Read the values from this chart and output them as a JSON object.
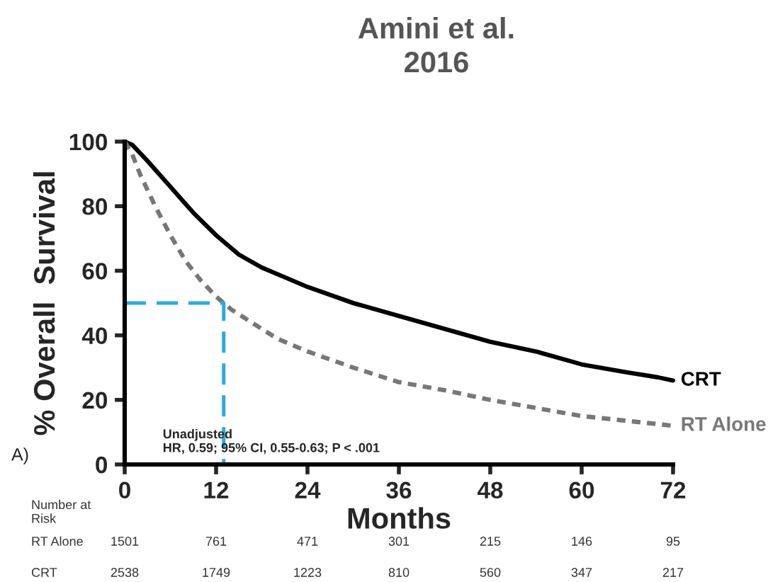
{
  "chart_data": {
    "type": "line",
    "title": "Amini et al.\n2016",
    "xlabel": "Months",
    "ylabel": "% Overall  Survival",
    "xlim": [
      0,
      72
    ],
    "xticks": [
      0,
      12,
      24,
      36,
      48,
      60,
      72
    ],
    "ylim": [
      0,
      100
    ],
    "yticks": [
      0,
      20,
      40,
      60,
      80,
      100
    ],
    "grid": false,
    "legend": false,
    "marker": "none",
    "series": [
      {
        "name": "CRT",
        "color": "#000000",
        "line_style": "solid",
        "x": [
          0,
          1,
          3,
          6,
          9,
          12,
          15,
          18,
          21,
          24,
          30,
          36,
          42,
          48,
          54,
          60,
          66,
          70,
          72
        ],
        "values": [
          100,
          99,
          94,
          86,
          78,
          71,
          65,
          61,
          58,
          55,
          50,
          46,
          42,
          38,
          35,
          31,
          28.5,
          27,
          26
        ]
      },
      {
        "name": "RT Alone",
        "color": "#777777",
        "line_style": "dotted",
        "x": [
          0,
          1,
          2,
          4,
          6,
          8,
          10,
          12,
          14,
          16,
          18,
          20,
          24,
          30,
          36,
          42,
          48,
          54,
          60,
          66,
          72
        ],
        "values": [
          100,
          96,
          90,
          80,
          71,
          63,
          57,
          52,
          48,
          45,
          42,
          39,
          35,
          30,
          25.5,
          23,
          20,
          17.5,
          15,
          13.5,
          12
        ]
      },
      {
        "color": "#29abe2",
        "line_style": "dashed",
        "x": [
          0,
          13,
          13
        ],
        "values": [
          50,
          50,
          0
        ]
      }
    ],
    "annotations": [
      "Unadjusted\nHR, 0.59; 95% CI, 0.55-0.63; P < .001",
      "A)",
      "Number at\nRisk",
      "RT Alone",
      "1501",
      "761",
      "471",
      "301",
      "215",
      "146",
      "95",
      "CRT",
      "2538",
      "1749",
      "1223",
      "810",
      "560",
      "347",
      "217"
    ]
  }
}
